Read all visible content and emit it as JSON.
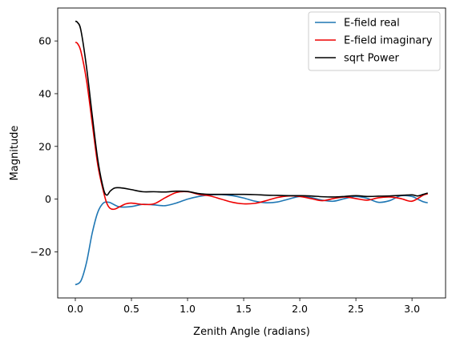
{
  "chart_data": {
    "type": "line",
    "title": "",
    "xlabel": "Zenith Angle (radians)",
    "ylabel": "Magnitude",
    "xlim": [
      -0.157,
      3.299
    ],
    "ylim": [
      -37.5,
      72.5
    ],
    "xticks": [
      0.0,
      0.5,
      1.0,
      1.5,
      2.0,
      2.5,
      3.0
    ],
    "xtick_labels": [
      "0.0",
      "0.5",
      "1.0",
      "1.5",
      "2.0",
      "2.5",
      "3.0"
    ],
    "yticks": [
      -20,
      0,
      20,
      40,
      60
    ],
    "ytick_labels": [
      "−20",
      "0",
      "20",
      "40",
      "60"
    ],
    "grid": false,
    "legend_position": "top-right",
    "series": [
      {
        "name": "E-field real",
        "color": "#1f77b4",
        "x": [
          0.0,
          0.05,
          0.1,
          0.15,
          0.2,
          0.25,
          0.3,
          0.35,
          0.4,
          0.5,
          0.6,
          0.7,
          0.8,
          0.9,
          1.0,
          1.1,
          1.2,
          1.3,
          1.4,
          1.5,
          1.6,
          1.7,
          1.8,
          1.9,
          2.0,
          2.1,
          2.2,
          2.3,
          2.4,
          2.5,
          2.6,
          2.7,
          2.8,
          2.9,
          3.0,
          3.05,
          3.1,
          3.14
        ],
        "y": [
          -32.5,
          -31.0,
          -24.0,
          -13.0,
          -5.0,
          -1.5,
          -1.2,
          -2.2,
          -3.0,
          -2.8,
          -2.0,
          -2.2,
          -2.5,
          -1.5,
          0.0,
          1.0,
          1.6,
          1.7,
          1.3,
          0.4,
          -0.8,
          -1.4,
          -1.1,
          0.0,
          1.0,
          0.6,
          -0.4,
          -0.8,
          0.2,
          1.0,
          0.3,
          -1.2,
          -0.6,
          1.3,
          1.0,
          0.0,
          -1.0,
          -1.4
        ]
      },
      {
        "name": "E-field imaginary",
        "color": "#ee0000",
        "x": [
          0.0,
          0.02,
          0.05,
          0.1,
          0.15,
          0.2,
          0.25,
          0.28,
          0.31,
          0.35,
          0.4,
          0.45,
          0.5,
          0.6,
          0.7,
          0.8,
          0.9,
          1.0,
          1.1,
          1.2,
          1.3,
          1.4,
          1.5,
          1.6,
          1.7,
          1.8,
          1.9,
          2.0,
          2.1,
          2.2,
          2.3,
          2.4,
          2.5,
          2.6,
          2.7,
          2.8,
          2.9,
          3.0,
          3.1,
          3.14
        ],
        "y": [
          59.5,
          59.0,
          56.0,
          45.0,
          29.0,
          13.0,
          3.0,
          -1.5,
          -3.5,
          -3.8,
          -2.8,
          -1.8,
          -1.5,
          -2.0,
          -1.8,
          0.5,
          2.5,
          2.8,
          1.8,
          1.2,
          0.0,
          -1.2,
          -1.8,
          -1.6,
          -0.6,
          0.6,
          1.2,
          1.0,
          0.2,
          -0.6,
          0.2,
          0.8,
          0.2,
          -0.4,
          0.5,
          0.8,
          0.2,
          -0.8,
          1.5,
          2.0
        ]
      },
      {
        "name": "sqrt Power",
        "color": "#000000",
        "x": [
          0.0,
          0.02,
          0.05,
          0.1,
          0.15,
          0.2,
          0.25,
          0.28,
          0.31,
          0.35,
          0.4,
          0.5,
          0.6,
          0.7,
          0.8,
          0.9,
          1.0,
          1.1,
          1.2,
          1.3,
          1.4,
          1.5,
          1.6,
          1.7,
          1.8,
          1.9,
          2.0,
          2.1,
          2.2,
          2.3,
          2.4,
          2.5,
          2.6,
          2.7,
          2.8,
          2.9,
          3.0,
          3.05,
          3.1,
          3.14
        ],
        "y": [
          67.5,
          67.0,
          64.0,
          50.0,
          32.0,
          15.0,
          4.0,
          1.5,
          3.0,
          4.2,
          4.3,
          3.6,
          2.8,
          2.8,
          2.7,
          3.0,
          2.9,
          2.1,
          1.8,
          1.8,
          1.8,
          1.8,
          1.7,
          1.5,
          1.4,
          1.3,
          1.3,
          1.2,
          0.9,
          0.8,
          1.0,
          1.3,
          1.0,
          1.1,
          1.2,
          1.4,
          1.6,
          1.2,
          1.8,
          2.3
        ]
      }
    ]
  }
}
